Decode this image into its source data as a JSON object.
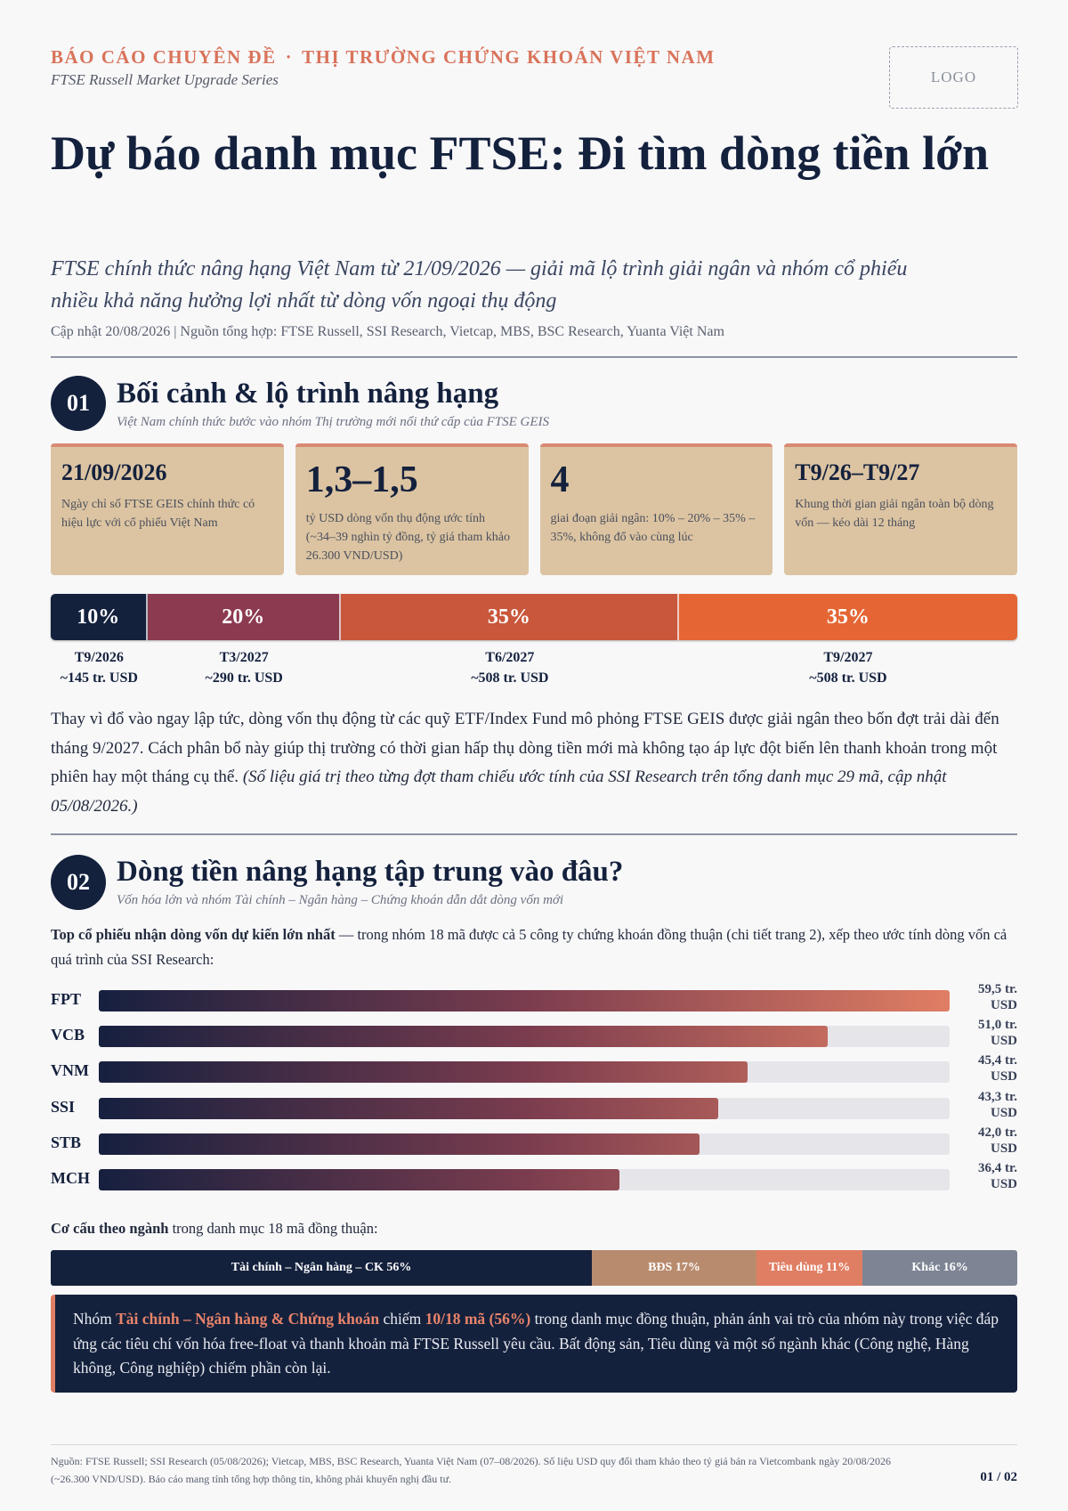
{
  "header": {
    "kicker_left": "BÁO CÁO CHUYÊN ĐỀ",
    "kicker_sep": "·",
    "kicker_right": "THỊ TRƯỜNG CHỨNG KHOÁN VIỆT NAM",
    "series": "FTSE Russell Market Upgrade Series",
    "logo": "LOGO"
  },
  "title": "Dự báo danh mục FTSE: Đi tìm dòng tiền lớn",
  "subtitle": "FTSE chính thức nâng hạng Việt Nam từ 21/09/2026 — giải mã lộ trình giải ngân và nhóm cổ phiếu nhiều khả năng hưởng lợi nhất từ dòng vốn ngoại thụ động",
  "meta": "Cập nhật 20/08/2026  |  Nguồn tổng hợp: FTSE Russell, SSI Research, Vietcap, MBS, BSC Research, Yuanta Việt Nam",
  "section1": {
    "number": "01",
    "title": "Bối cảnh & lộ trình nâng hạng",
    "subtitle": "Việt Nam chính thức bước vào nhóm Thị trường mới nổi thứ cấp của FTSE GEIS",
    "cards": [
      {
        "big": "21/09/2026",
        "desc": "Ngày chỉ số FTSE GEIS chính thức có hiệu lực với cổ phiếu Việt Nam"
      },
      {
        "big": "1,3–1,5",
        "desc": "tỷ USD dòng vốn thụ động ước tính (~34–39 nghìn tỷ đồng, tỷ giá tham khảo 26.300 VND/USD)"
      },
      {
        "big": "4",
        "desc": "giai đoạn giải ngân: 10% – 20% – 35% – 35%, không đổ vào cùng lúc"
      },
      {
        "big": "T9/26–T9/27",
        "desc": "Khung thời gian giải ngân toàn bộ dòng vốn — kéo dài 12 tháng"
      }
    ],
    "tranches": [
      {
        "pct": "10%",
        "share": 10,
        "period": "T9/2026",
        "amount": "~145 tr. USD",
        "color": "#14213d"
      },
      {
        "pct": "20%",
        "share": 20,
        "period": "T3/2027",
        "amount": "~290 tr. USD",
        "color": "#8c3a50"
      },
      {
        "pct": "35%",
        "share": 35,
        "period": "T6/2027",
        "amount": "~508 tr. USD",
        "color": "#c9573b"
      },
      {
        "pct": "35%",
        "share": 35,
        "period": "T9/2027",
        "amount": "~508 tr. USD",
        "color": "#e56634"
      }
    ],
    "paragraph": "Thay vì đổ vào ngay lập tức, dòng vốn thụ động từ các quỹ ETF/Index Fund mô phỏng FTSE GEIS được giải ngân theo bốn đợt trải dài đến tháng 9/2027. Cách phân bổ này giúp thị trường có thời gian hấp thụ dòng tiền mới mà không tạo áp lực đột biến lên thanh khoản trong một phiên hay một tháng cụ thể.",
    "paragraph_note": "(Số liệu giá trị theo từng đợt tham chiếu ước tính của SSI Research trên tổng danh mục 29 mã, cập nhật 05/08/2026.)"
  },
  "section2": {
    "number": "02",
    "title": "Dòng tiền nâng hạng tập trung vào đâu?",
    "subtitle": "Vốn hóa lớn và nhóm Tài chính – Ngân hàng – Chứng khoán dẫn dắt dòng vốn mới",
    "lead_bold": "Top cổ phiếu nhận dòng vốn dự kiến lớn nhất",
    "lead_rest": " — trong nhóm 18 mã được cả 5 công ty chứng khoán đồng thuận (chi tiết trang 2), xếp theo ước tính dòng vốn cả quá trình của SSI Research:",
    "structure_lead_bold": "Cơ cấu theo ngành",
    "structure_lead_rest": " trong danh mục 18 mã đồng thuận:",
    "structure": [
      {
        "label": "Tài chính – Ngân hàng – CK  56%",
        "share": 56,
        "color": "#14213d"
      },
      {
        "label": "BĐS 17%",
        "share": 17,
        "color": "#b98b6e"
      },
      {
        "label": "Tiêu dùng 11%",
        "share": 11,
        "color": "#e07e64"
      },
      {
        "label": "Khác 16%",
        "share": 16,
        "color": "#7d8594"
      }
    ],
    "callout": {
      "t1": "Nhóm ",
      "h1": "Tài chính – Ngân hàng & Chứng khoán",
      "t2": " chiếm ",
      "h2": "10/18 mã (56%)",
      "t3": " trong danh mục đồng thuận, phản ánh vai trò của nhóm này trong việc đáp ứng các tiêu chí vốn hóa free-float và thanh khoản mà FTSE Russell yêu cầu. Bất động sản, Tiêu dùng và một số ngành khác (Công nghệ, Hàng không, Công nghiệp) chiếm phần còn lại."
    }
  },
  "chart_data": {
    "type": "bar",
    "orientation": "horizontal",
    "categories": [
      "FPT",
      "VCB",
      "VNM",
      "SSI",
      "STB",
      "MCH"
    ],
    "values": [
      59.5,
      51.0,
      45.4,
      43.3,
      42.0,
      36.4
    ],
    "value_labels": [
      "59,5 tr. USD",
      "51,0 tr. USD",
      "45,4 tr. USD",
      "43,3 tr. USD",
      "42,0 tr. USD",
      "36,4 tr. USD"
    ],
    "xlim": [
      0,
      59.5
    ]
  },
  "footer": {
    "note": "Nguồn: FTSE Russell; SSI Research (05/08/2026); Vietcap, MBS, BSC Research, Yuanta Việt Nam (07–08/2026). Số liệu USD quy đổi tham khảo theo tỷ giá bán ra Vietcombank ngày 20/08/2026 (~26.300 VND/USD). Báo cáo mang tính tổng hợp thông tin, không phải khuyến nghị đầu tư.",
    "page": "01 / 02"
  }
}
